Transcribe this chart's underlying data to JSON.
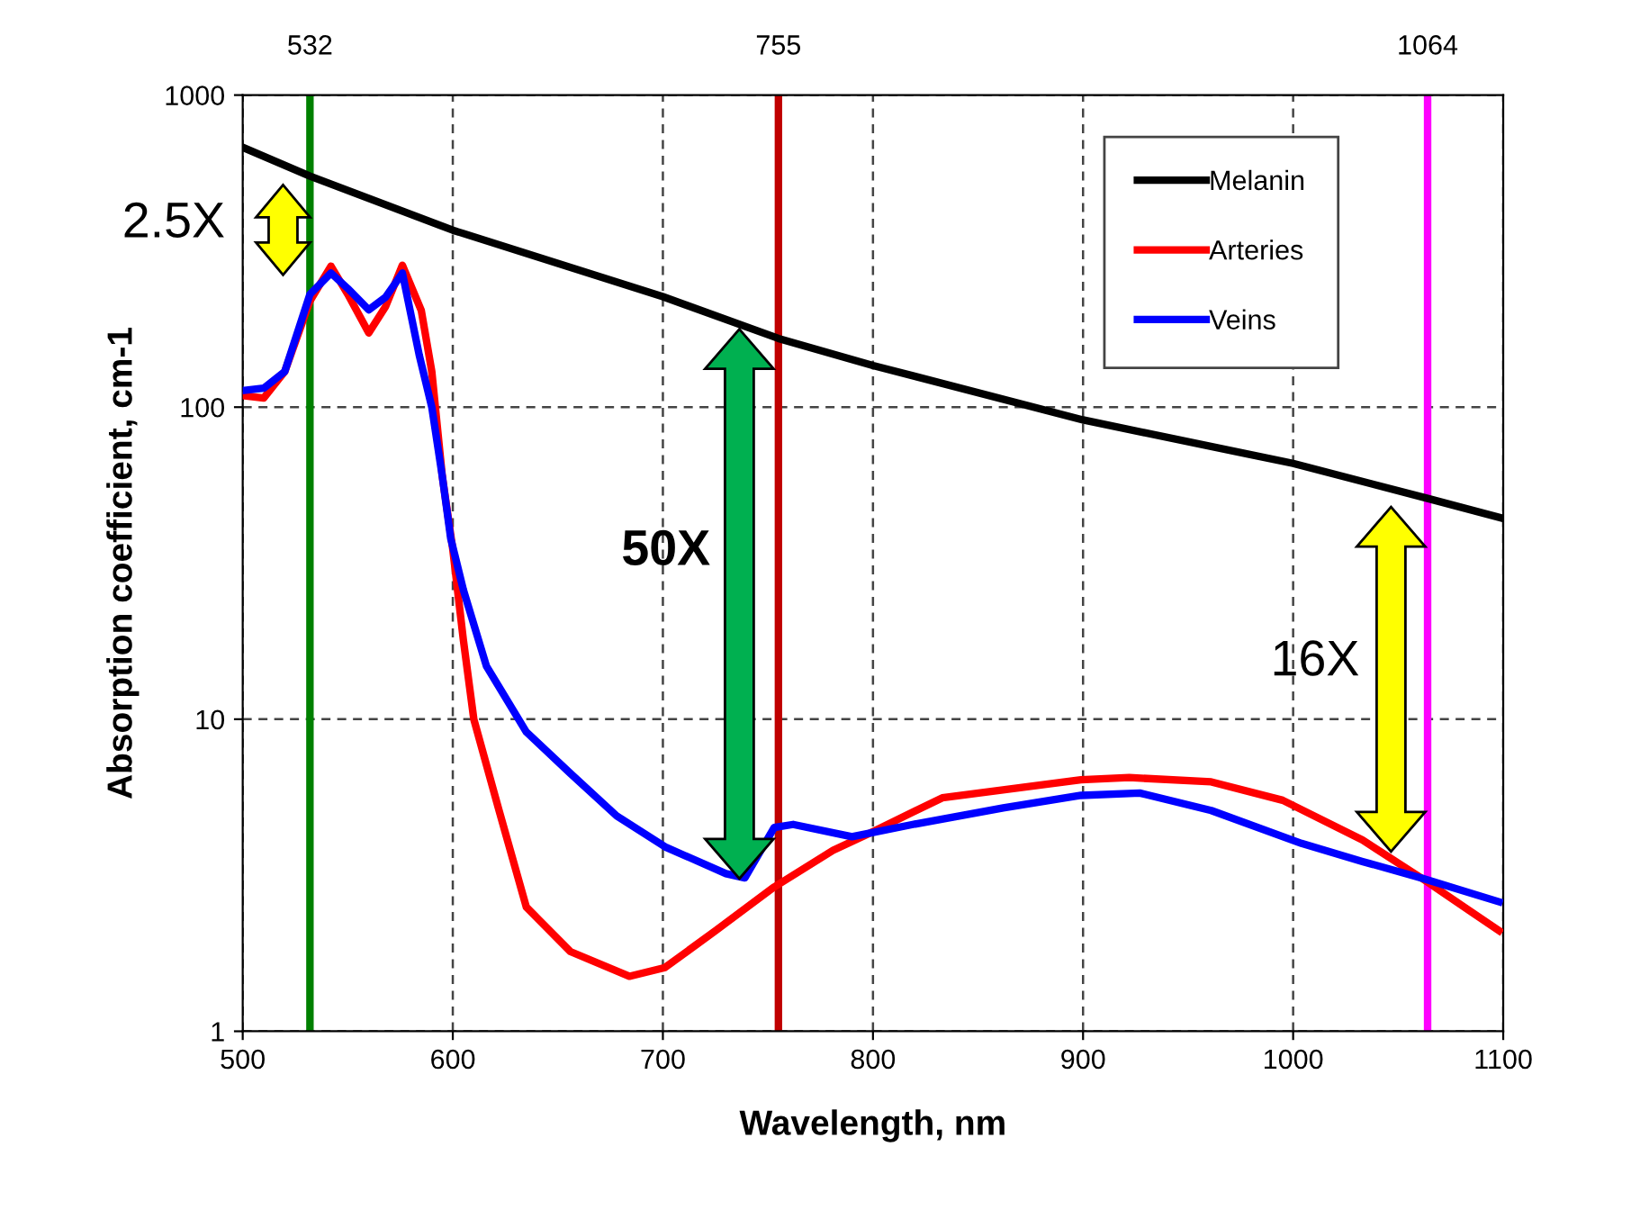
{
  "chart_data": {
    "type": "line",
    "xlabel": "Wavelength, nm",
    "ylabel": "Absorption coefficient, cm-1",
    "log": "y",
    "xlim": [
      500,
      1100
    ],
    "ylim": [
      1,
      1000
    ],
    "xticks": [
      500,
      600,
      700,
      800,
      900,
      1000,
      1100
    ],
    "yticks": [
      1,
      10,
      100,
      1000
    ],
    "grid": true,
    "legend": "top right",
    "line_style": "solid",
    "marker": "none",
    "series": [
      {
        "name": "Melanin",
        "color": "#000000",
        "x": [
          500,
          532,
          600,
          700,
          755,
          800,
          900,
          1000,
          1064,
          1100
        ],
        "values": [
          680,
          550,
          369,
          226,
          166,
          136,
          91,
          66,
          51,
          44
        ]
      },
      {
        "name": "Arteries",
        "color": "#ff0000",
        "x": [
          500,
          510,
          520,
          532,
          542,
          550,
          560,
          568,
          576,
          585,
          590,
          595,
          600,
          605,
          610,
          622,
          635,
          656,
          684,
          701,
          725,
          753,
          781,
          798,
          833,
          899,
          922,
          961,
          995,
          1033,
          1061,
          1098
        ],
        "values": [
          109,
          107,
          130,
          219,
          283,
          230,
          173,
          210,
          285,
          204,
          130,
          60,
          35,
          18,
          10,
          5.1,
          2.5,
          1.8,
          1.5,
          1.6,
          2.1,
          2.9,
          3.8,
          4.3,
          5.6,
          6.4,
          6.5,
          6.3,
          5.5,
          4.1,
          3.1,
          2.1
        ]
      },
      {
        "name": "Veins",
        "color": "#0000ff",
        "x": [
          500,
          510,
          520,
          532,
          542,
          550,
          560,
          568,
          576,
          584,
          590,
          595,
          599,
          605,
          616,
          635,
          656,
          678,
          701,
          730,
          739,
          753,
          762,
          790,
          819,
          862,
          899,
          927,
          961,
          1004,
          1033,
          1061,
          1098
        ],
        "values": [
          113,
          115,
          130,
          230,
          269,
          240,
          205,
          225,
          269,
          147,
          100,
          60,
          38,
          26,
          14.8,
          9.1,
          6.7,
          4.9,
          3.9,
          3.2,
          3.1,
          4.5,
          4.6,
          4.2,
          4.6,
          5.2,
          5.7,
          5.8,
          5.1,
          4.0,
          3.5,
          3.1,
          2.6
        ]
      }
    ],
    "ref_lines": [
      {
        "axis": "x",
        "value": 532,
        "label": "532",
        "color": "#008000"
      },
      {
        "axis": "x",
        "value": 755,
        "label": "755",
        "color": "#c00000"
      },
      {
        "axis": "x",
        "value": 1064,
        "label": "1064",
        "color": "#ff00ff"
      }
    ],
    "annotations": [
      "2.5X",
      "50X",
      "16X"
    ]
  }
}
